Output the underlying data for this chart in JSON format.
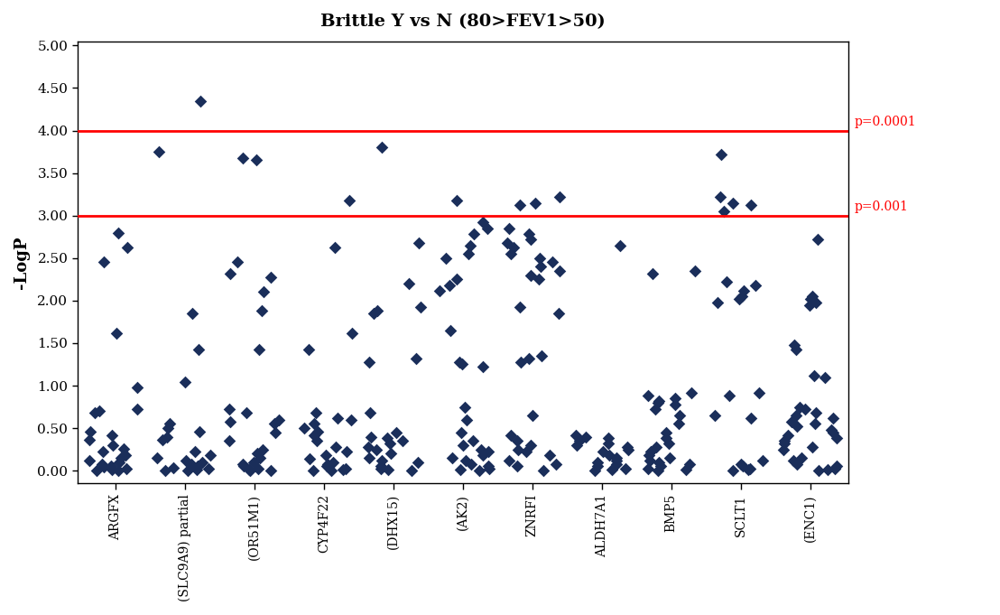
{
  "title": "Brittle Y vs N (80>FEV1>50)",
  "ylabel": "-LogP",
  "ylim": [
    -0.15,
    5.05
  ],
  "yticks": [
    0.0,
    0.5,
    1.0,
    1.5,
    2.0,
    2.5,
    3.0,
    3.5,
    4.0,
    4.5,
    5.0
  ],
  "ytick_labels": [
    "0.00",
    "0.50",
    "1.00",
    "1.50",
    "2.00",
    "2.50",
    "3.00",
    "3.50",
    "4.00",
    "4.50",
    "5.00"
  ],
  "hline1": 4.0,
  "hline2": 3.0,
  "hline1_label": "p=0.0001",
  "hline2_label": "p=0.001",
  "marker_color": "#1a2e5a",
  "marker_size": 48,
  "background_color": "#ffffff",
  "categories": [
    "ARGFX",
    "(SLC9A9) partial",
    "(OR51M1)",
    "CYP4F22",
    "(DHX15)",
    "(AK2)",
    "ZNRFI",
    "ALDH7A1",
    "BMP5",
    "SCLT1",
    "(ENC1)"
  ],
  "points": {
    "ARGFX": [
      2.8,
      2.62,
      2.45,
      1.62,
      0.98,
      0.72,
      0.68,
      0.7,
      0.46,
      0.42,
      0.36,
      0.3,
      0.26,
      0.22,
      0.18,
      0.15,
      0.12,
      0.1,
      0.08,
      0.06,
      0.04,
      0.02,
      0.01,
      0.005,
      0.0
    ],
    "(SLC9A9) partial": [
      4.35,
      3.75,
      1.85,
      1.42,
      1.04,
      0.55,
      0.5,
      0.46,
      0.4,
      0.36,
      0.22,
      0.18,
      0.15,
      0.12,
      0.1,
      0.08,
      0.05,
      0.03,
      0.02,
      0.01,
      0.0,
      0.0
    ],
    "(OR51M1)": [
      3.68,
      3.65,
      2.45,
      2.32,
      2.28,
      2.1,
      1.88,
      1.42,
      0.72,
      0.68,
      0.6,
      0.58,
      0.55,
      0.45,
      0.35,
      0.25,
      0.2,
      0.15,
      0.1,
      0.08,
      0.05,
      0.02,
      0.01,
      0.0,
      0.0
    ],
    "CYP4F22": [
      3.18,
      2.62,
      1.62,
      1.42,
      0.68,
      0.62,
      0.6,
      0.55,
      0.5,
      0.46,
      0.42,
      0.35,
      0.28,
      0.22,
      0.18,
      0.14,
      0.1,
      0.08,
      0.05,
      0.02,
      0.01,
      0.0,
      0.0
    ],
    "(DHX15)": [
      3.8,
      2.68,
      2.2,
      1.92,
      1.88,
      1.85,
      1.32,
      1.28,
      0.68,
      0.45,
      0.4,
      0.38,
      0.35,
      0.32,
      0.28,
      0.25,
      0.2,
      0.15,
      0.12,
      0.1,
      0.05,
      0.02,
      0.01,
      0.0
    ],
    "(AK2)": [
      3.18,
      2.92,
      2.85,
      2.78,
      2.65,
      2.55,
      2.5,
      2.25,
      2.18,
      2.12,
      1.65,
      1.28,
      1.25,
      1.22,
      0.75,
      0.6,
      0.45,
      0.35,
      0.3,
      0.25,
      0.22,
      0.18,
      0.15,
      0.12,
      0.08,
      0.05,
      0.02,
      0.01,
      0.0
    ],
    "ZNRFI": [
      3.22,
      3.15,
      3.12,
      2.85,
      2.78,
      2.72,
      2.68,
      2.62,
      2.55,
      2.5,
      2.45,
      2.4,
      2.35,
      2.3,
      2.25,
      1.92,
      1.85,
      1.35,
      1.32,
      1.28,
      0.65,
      0.42,
      0.35,
      0.3,
      0.25,
      0.22,
      0.18,
      0.12,
      0.08,
      0.05,
      0.0
    ],
    "ALDH7A1": [
      2.65,
      0.42,
      0.4,
      0.38,
      0.35,
      0.32,
      0.3,
      0.28,
      0.25,
      0.22,
      0.18,
      0.15,
      0.12,
      0.1,
      0.08,
      0.05,
      0.02,
      0.01,
      0.0
    ],
    "BMP5": [
      2.35,
      2.32,
      0.92,
      0.88,
      0.85,
      0.82,
      0.8,
      0.78,
      0.72,
      0.65,
      0.55,
      0.45,
      0.38,
      0.32,
      0.28,
      0.22,
      0.18,
      0.15,
      0.12,
      0.1,
      0.08,
      0.05,
      0.02,
      0.01,
      0.0
    ],
    "SCLT1": [
      3.72,
      3.22,
      3.15,
      3.12,
      3.05,
      2.22,
      2.18,
      2.12,
      2.05,
      2.02,
      1.98,
      0.92,
      0.88,
      0.65,
      0.62,
      0.12,
      0.08,
      0.05,
      0.02,
      0.01,
      0.0
    ],
    "(ENC1)": [
      2.72,
      2.05,
      2.02,
      1.98,
      1.95,
      1.48,
      1.42,
      1.12,
      1.1,
      0.75,
      0.72,
      0.68,
      0.65,
      0.62,
      0.58,
      0.55,
      0.52,
      0.48,
      0.45,
      0.42,
      0.38,
      0.35,
      0.32,
      0.28,
      0.25,
      0.15,
      0.12,
      0.08,
      0.05,
      0.02,
      0.01,
      0.0
    ]
  }
}
